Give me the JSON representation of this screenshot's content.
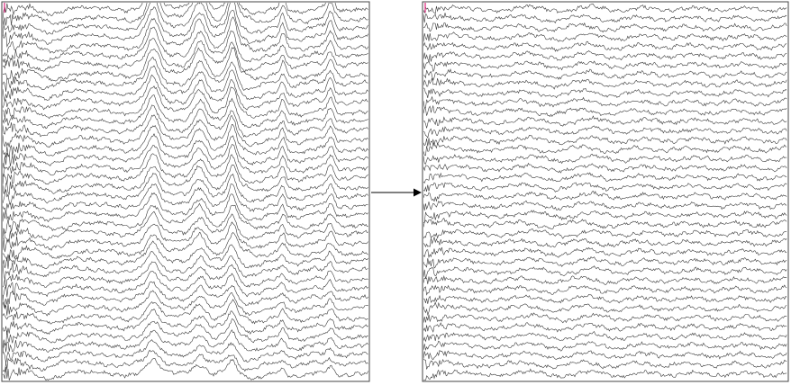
{
  "figure": {
    "type": "before-after-signal-comparison",
    "arrow_direction": "left-to-right",
    "trace_color": "#3a3a3a",
    "marker_color": "#e0207a",
    "panels": [
      {
        "id": "before",
        "traces": 40,
        "artifact": "large-ocular-and-muscle-artifacts"
      },
      {
        "id": "after",
        "traces": 40,
        "artifact": "cleaned"
      }
    ]
  }
}
